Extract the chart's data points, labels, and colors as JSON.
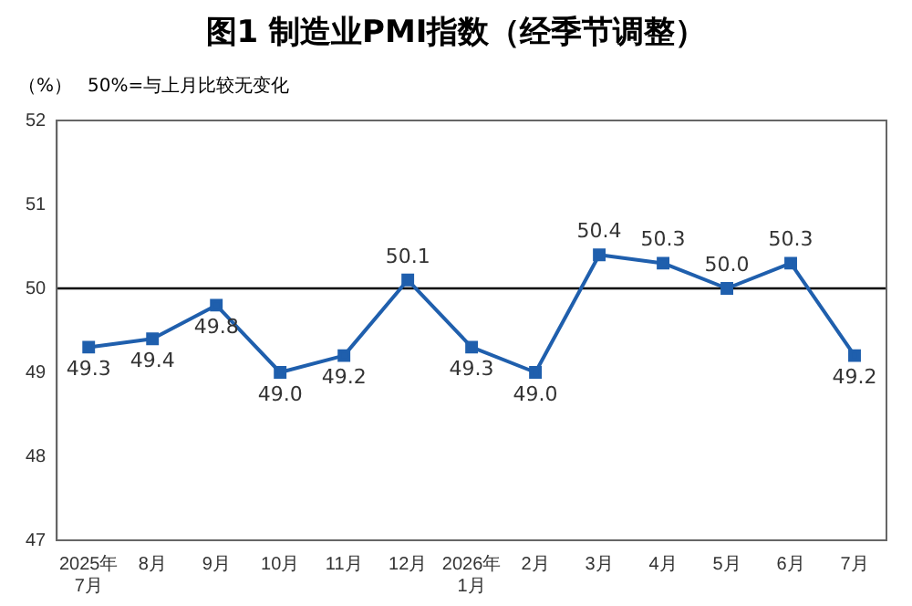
{
  "chart_data": {
    "type": "line",
    "title": "图1 制造业PMI指数（经季节调整）",
    "ylabel": "（%）",
    "annotations": [
      "50%=与上月比较无变化"
    ],
    "categories": [
      "2025年\n7月",
      "8月",
      "9月",
      "10月",
      "11月",
      "12月",
      "2026年\n1月",
      "2月",
      "3月",
      "4月",
      "5月",
      "6月",
      "7月"
    ],
    "series": [
      {
        "color": "#1f5fad",
        "values": [
          49.3,
          49.4,
          49.8,
          49.0,
          49.2,
          50.1,
          49.3,
          49.0,
          50.4,
          50.3,
          50.0,
          50.3,
          49.2
        ],
        "value_labels": [
          "49.3",
          "49.4",
          "49.8",
          "49.0",
          "49.2",
          "50.1",
          "49.3",
          "49.0",
          "50.4",
          "50.3",
          "50.0",
          "50.3",
          "49.2"
        ]
      }
    ],
    "ylim": [
      47,
      52
    ],
    "yticks": [
      47,
      48,
      49,
      50,
      51,
      52
    ],
    "grid": false,
    "legend": false,
    "marker": "square",
    "line_style": "solid",
    "ref_lines": [
      {
        "axis": "y",
        "value": 50,
        "color": "#000000"
      }
    ]
  }
}
